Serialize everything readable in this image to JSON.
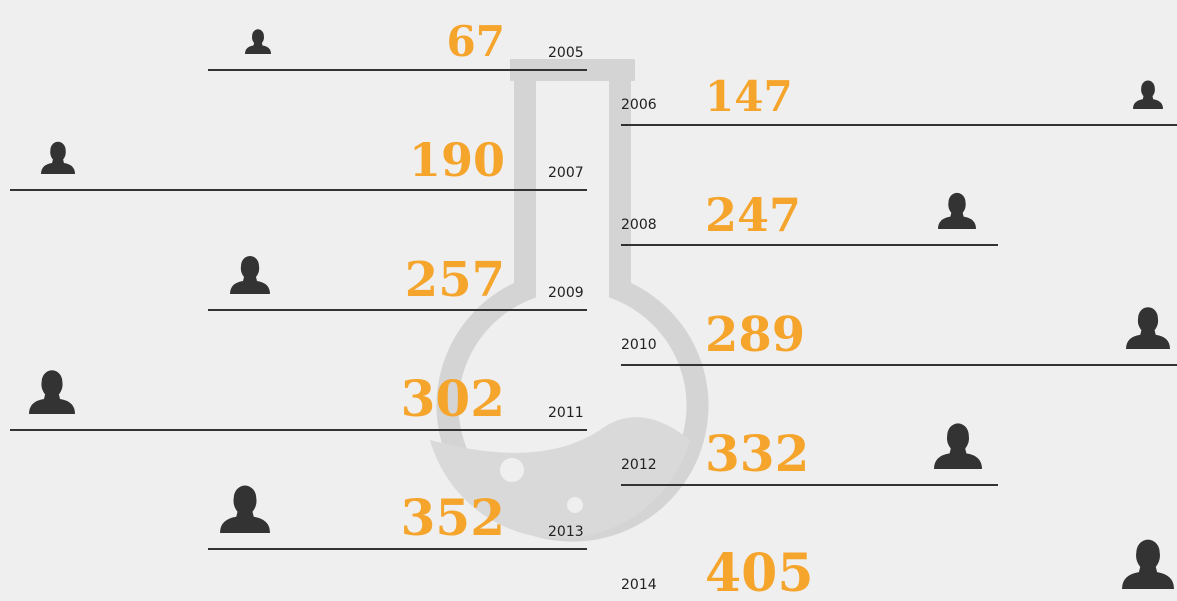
{
  "entries": [
    {
      "year": "2005",
      "value": 67
    },
    {
      "year": "2006",
      "value": 147
    },
    {
      "year": "2007",
      "value": 190
    },
    {
      "year": "2008",
      "value": 247
    },
    {
      "year": "2009",
      "value": 257
    },
    {
      "year": "2010",
      "value": 289
    },
    {
      "year": "2011",
      "value": 302
    },
    {
      "year": "2012",
      "value": 332
    },
    {
      "year": "2013",
      "value": 352
    },
    {
      "year": "2014",
      "value": 405
    }
  ]
}
